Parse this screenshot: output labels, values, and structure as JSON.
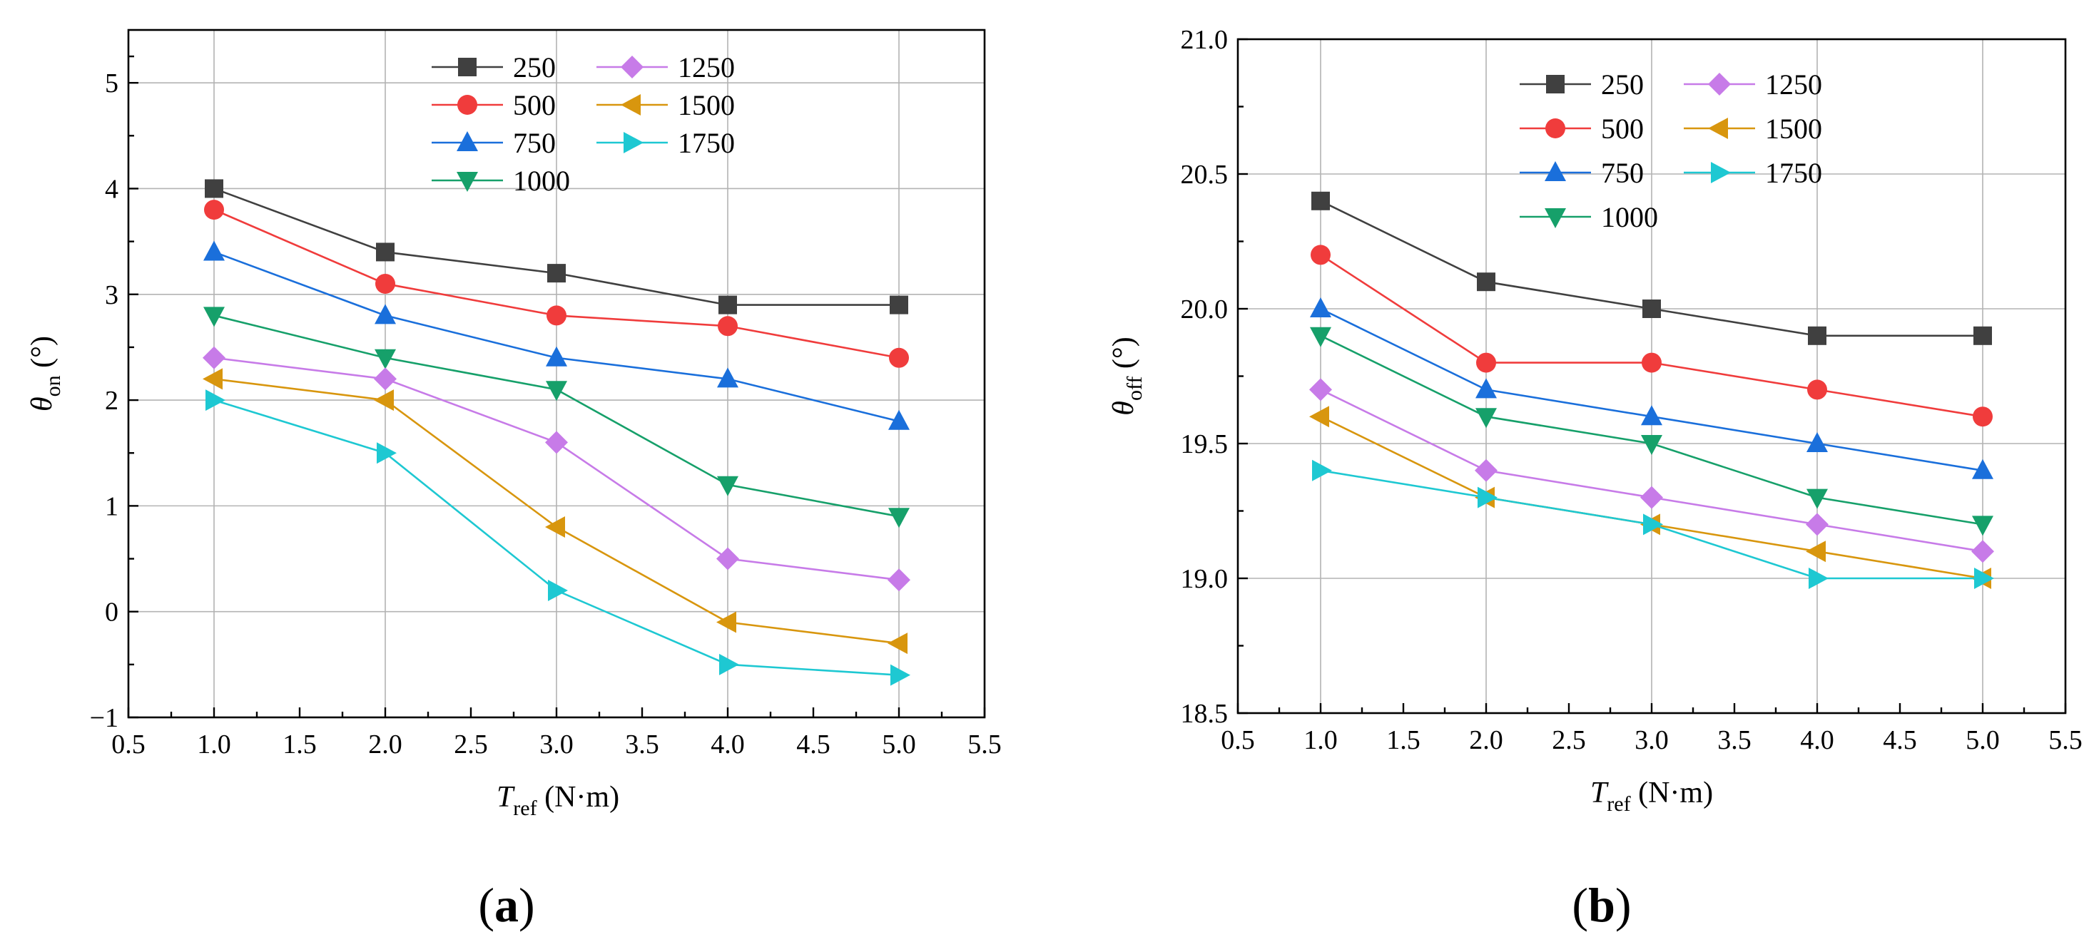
{
  "chart_data": [
    {
      "type": "line",
      "panel_label": "(a)",
      "x": [
        1.0,
        2.0,
        3.0,
        4.0,
        5.0
      ],
      "xlim": [
        0.5,
        5.5
      ],
      "ylim": [
        -1,
        5.5
      ],
      "xticks": [
        "0.5",
        "1.0",
        "1.5",
        "2.0",
        "2.5",
        "3.0",
        "3.5",
        "4.0",
        "4.5",
        "5.0",
        "5.5"
      ],
      "yticks": [
        "−1",
        "0",
        "1",
        "2",
        "3",
        "4",
        "5"
      ],
      "xlabel": {
        "main": "T",
        "sub": "ref",
        "unit": " (N·m)"
      },
      "ylabel": {
        "main": "θ",
        "sub": "on",
        "unit": " (°)"
      },
      "grid": true,
      "legend_position": "top-right",
      "series": [
        {
          "name": "250",
          "color": "#404040",
          "marker": "square",
          "values": [
            4.0,
            3.4,
            3.2,
            2.9,
            2.9
          ]
        },
        {
          "name": "500",
          "color": "#f03c3c",
          "marker": "circle",
          "values": [
            3.8,
            3.1,
            2.8,
            2.7,
            2.4
          ]
        },
        {
          "name": "750",
          "color": "#1a6fdb",
          "marker": "triangle-up",
          "values": [
            3.4,
            2.8,
            2.4,
            2.2,
            1.8
          ]
        },
        {
          "name": "1000",
          "color": "#16a06a",
          "marker": "triangle-down",
          "values": [
            2.8,
            2.4,
            2.1,
            1.2,
            0.9
          ]
        },
        {
          "name": "1250",
          "color": "#c77be8",
          "marker": "diamond",
          "values": [
            2.4,
            2.2,
            1.6,
            0.5,
            0.3
          ]
        },
        {
          "name": "1500",
          "color": "#d8960e",
          "marker": "triangle-left",
          "values": [
            2.2,
            2.0,
            0.8,
            -0.1,
            -0.3
          ]
        },
        {
          "name": "1750",
          "color": "#1ec8d2",
          "marker": "triangle-right",
          "values": [
            2.0,
            1.5,
            0.2,
            -0.5,
            -0.6
          ]
        }
      ]
    },
    {
      "type": "line",
      "panel_label": "(b)",
      "x": [
        1.0,
        2.0,
        3.0,
        4.0,
        5.0
      ],
      "xlim": [
        0.5,
        5.5
      ],
      "ylim": [
        18.5,
        21.0
      ],
      "xticks": [
        "0.5",
        "1.0",
        "1.5",
        "2.0",
        "2.5",
        "3.0",
        "3.5",
        "4.0",
        "4.5",
        "5.0",
        "5.5"
      ],
      "yticks": [
        "18.5",
        "19.0",
        "19.5",
        "20.0",
        "20.5",
        "21.0"
      ],
      "xlabel": {
        "main": "T",
        "sub": "ref",
        "unit": " (N·m)"
      },
      "ylabel": {
        "main": "θ",
        "sub": "off",
        "unit": " (°)"
      },
      "grid": true,
      "legend_position": "top-right",
      "series": [
        {
          "name": "250",
          "color": "#404040",
          "marker": "square",
          "values": [
            20.4,
            20.1,
            20.0,
            19.9,
            19.9
          ]
        },
        {
          "name": "500",
          "color": "#f03c3c",
          "marker": "circle",
          "values": [
            20.2,
            19.8,
            19.8,
            19.7,
            19.6
          ]
        },
        {
          "name": "750",
          "color": "#1a6fdb",
          "marker": "triangle-up",
          "values": [
            20.0,
            19.7,
            19.6,
            19.5,
            19.4
          ]
        },
        {
          "name": "1000",
          "color": "#16a06a",
          "marker": "triangle-down",
          "values": [
            19.9,
            19.6,
            19.5,
            19.3,
            19.2
          ]
        },
        {
          "name": "1250",
          "color": "#c77be8",
          "marker": "diamond",
          "values": [
            19.7,
            19.4,
            19.3,
            19.2,
            19.1
          ]
        },
        {
          "name": "1500",
          "color": "#d8960e",
          "marker": "triangle-left",
          "values": [
            19.6,
            19.3,
            19.2,
            19.1,
            19.0
          ]
        },
        {
          "name": "1750",
          "color": "#1ec8d2",
          "marker": "triangle-right",
          "values": [
            19.4,
            19.3,
            19.2,
            19.0,
            19.0
          ]
        }
      ]
    }
  ]
}
